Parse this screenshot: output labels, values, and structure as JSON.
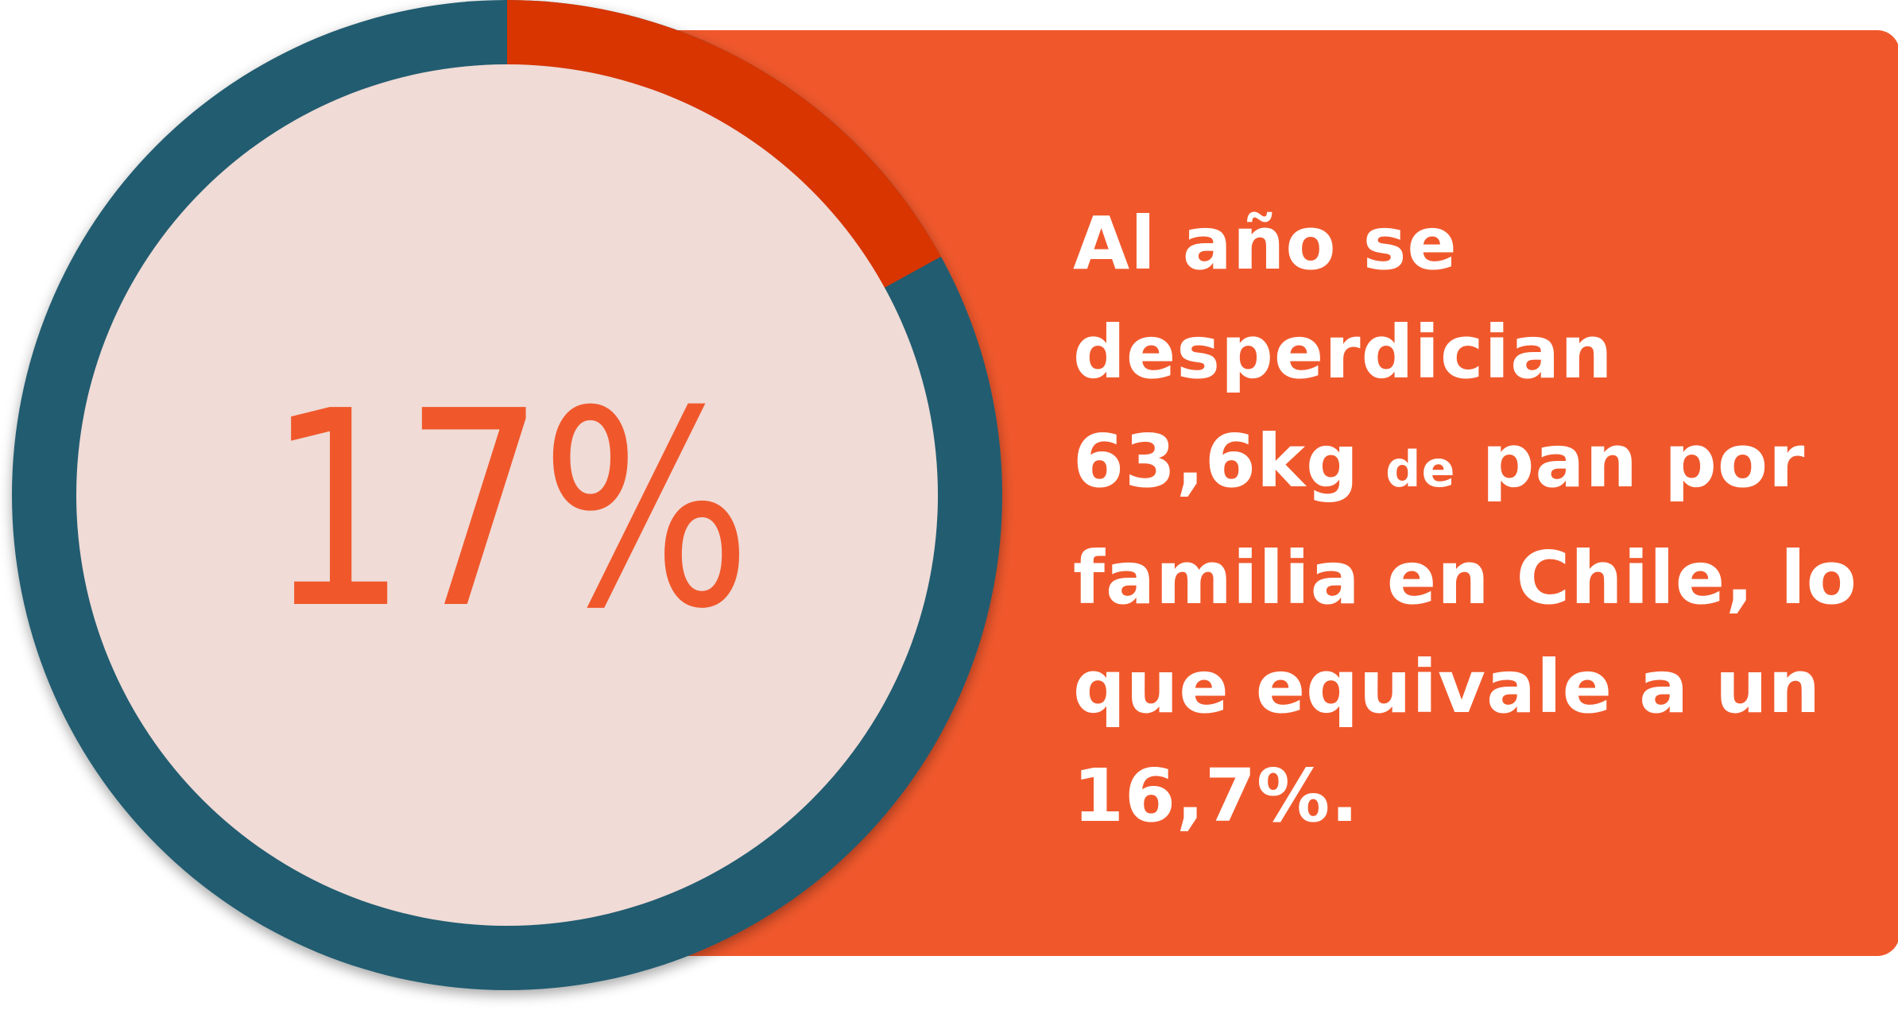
{
  "colors": {
    "panel": "#f0582c",
    "ring": "#225c70",
    "highlight_arc": "#d83500",
    "center_fill": "#f0dbd6",
    "big_value": "#f0582c",
    "text": "#ffffff"
  },
  "chart_data": {
    "type": "pie",
    "variant": "donut",
    "value_percent": 17,
    "center_label": "17%",
    "segments": [
      {
        "value": 17,
        "color": "#d83500"
      },
      {
        "value": 83,
        "color": "#225c70"
      }
    ]
  },
  "statement": {
    "part1": "Al año se desperdician 63,6kg",
    "part2": "de",
    "part3": "pan por familia en Chile, lo que equivale a un 16,7%."
  }
}
